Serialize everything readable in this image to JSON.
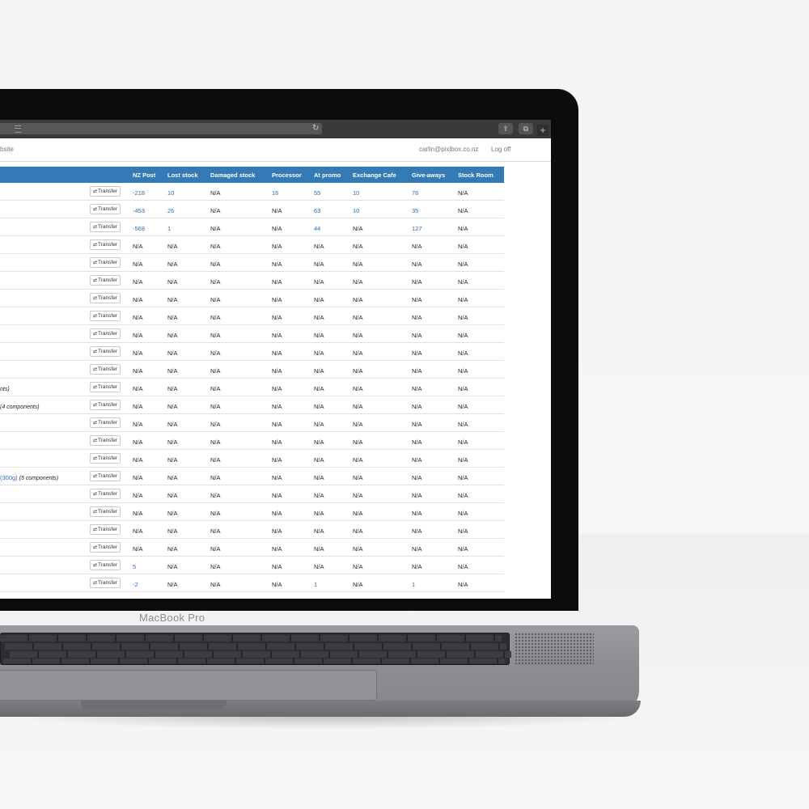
{
  "browser": {
    "reload_icon": "↻",
    "share_icon": "⇪",
    "tabs_icon": "⧉",
    "new_tab_label": "+"
  },
  "header": {
    "site_link": "bsite",
    "user_email": "carlin@pixlbox.co.nz",
    "logoff_label": "Log off"
  },
  "table": {
    "columns": [
      "NZ Post",
      "Lost stock",
      "Damaged stock",
      "Processor",
      "At promo",
      "Exchange Cafe",
      "Give-aways",
      "Stock Room"
    ],
    "transfer_label": "Transfer",
    "rows": [
      {
        "product": "",
        "product_link": "",
        "components": "",
        "values": [
          "-218",
          "10",
          "N/A",
          "16",
          "55",
          "10",
          "76",
          "N/A"
        ]
      },
      {
        "product": "",
        "product_link": "",
        "components": "",
        "values": [
          "-453",
          "26",
          "N/A",
          "N/A",
          "63",
          "10",
          "35",
          "N/A"
        ]
      },
      {
        "product": "",
        "product_link": "",
        "components": "",
        "values": [
          "-568",
          "1",
          "N/A",
          "N/A",
          "44",
          "N/A",
          "127",
          "N/A"
        ]
      },
      {
        "product": "",
        "product_link": "",
        "components": "",
        "values": [
          "N/A",
          "N/A",
          "N/A",
          "N/A",
          "N/A",
          "N/A",
          "N/A",
          "N/A"
        ]
      },
      {
        "product": "",
        "product_link": "",
        "components": "",
        "values": [
          "N/A",
          "N/A",
          "N/A",
          "N/A",
          "N/A",
          "N/A",
          "N/A",
          "N/A"
        ]
      },
      {
        "product": "",
        "product_link": "",
        "components": "",
        "values": [
          "N/A",
          "N/A",
          "N/A",
          "N/A",
          "N/A",
          "N/A",
          "N/A",
          "N/A"
        ]
      },
      {
        "product": "",
        "product_link": "",
        "components": "",
        "values": [
          "N/A",
          "N/A",
          "N/A",
          "N/A",
          "N/A",
          "N/A",
          "N/A",
          "N/A"
        ]
      },
      {
        "product": "",
        "product_link": "",
        "components": "",
        "values": [
          "N/A",
          "N/A",
          "N/A",
          "N/A",
          "N/A",
          "N/A",
          "N/A",
          "N/A"
        ]
      },
      {
        "product": "",
        "product_link": "",
        "components": "",
        "values": [
          "N/A",
          "N/A",
          "N/A",
          "N/A",
          "N/A",
          "N/A",
          "N/A",
          "N/A"
        ]
      },
      {
        "product": "",
        "product_link": "",
        "components": "",
        "values": [
          "N/A",
          "N/A",
          "N/A",
          "N/A",
          "N/A",
          "N/A",
          "N/A",
          "N/A"
        ]
      },
      {
        "product": "",
        "product_link": "",
        "components": "",
        "values": [
          "N/A",
          "N/A",
          "N/A",
          "N/A",
          "N/A",
          "N/A",
          "N/A",
          "N/A"
        ]
      },
      {
        "product": "nts)",
        "product_link": "",
        "components": "",
        "values": [
          "N/A",
          "N/A",
          "N/A",
          "N/A",
          "N/A",
          "N/A",
          "N/A",
          "N/A"
        ]
      },
      {
        "product": "(4 components)",
        "product_link": "",
        "components": "",
        "values": [
          "N/A",
          "N/A",
          "N/A",
          "N/A",
          "N/A",
          "N/A",
          "N/A",
          "N/A"
        ]
      },
      {
        "product": "",
        "product_link": "",
        "components": "",
        "values": [
          "N/A",
          "N/A",
          "N/A",
          "N/A",
          "N/A",
          "N/A",
          "N/A",
          "N/A"
        ]
      },
      {
        "product": "",
        "product_link": "",
        "components": "",
        "values": [
          "N/A",
          "N/A",
          "N/A",
          "N/A",
          "N/A",
          "N/A",
          "N/A",
          "N/A"
        ]
      },
      {
        "product": "",
        "product_link": "",
        "components": "",
        "values": [
          "N/A",
          "N/A",
          "N/A",
          "N/A",
          "N/A",
          "N/A",
          "N/A",
          "N/A"
        ]
      },
      {
        "product": "",
        "product_link": "(300g)",
        "components": " (5 components)",
        "values": [
          "N/A",
          "N/A",
          "N/A",
          "N/A",
          "N/A",
          "N/A",
          "N/A",
          "N/A"
        ]
      },
      {
        "product": "",
        "product_link": "",
        "components": "",
        "values": [
          "N/A",
          "N/A",
          "N/A",
          "N/A",
          "N/A",
          "N/A",
          "N/A",
          "N/A"
        ]
      },
      {
        "product": "",
        "product_link": "",
        "components": "",
        "values": [
          "N/A",
          "N/A",
          "N/A",
          "N/A",
          "N/A",
          "N/A",
          "N/A",
          "N/A"
        ]
      },
      {
        "product": "",
        "product_link": "",
        "components": "",
        "values": [
          "N/A",
          "N/A",
          "N/A",
          "N/A",
          "N/A",
          "N/A",
          "N/A",
          "N/A"
        ]
      },
      {
        "product": "",
        "product_link": "",
        "components": "",
        "values": [
          "N/A",
          "N/A",
          "N/A",
          "N/A",
          "N/A",
          "N/A",
          "N/A",
          "N/A"
        ]
      },
      {
        "product": "",
        "product_link": "",
        "components": "",
        "values": [
          "5",
          "N/A",
          "N/A",
          "N/A",
          "N/A",
          "N/A",
          "N/A",
          "N/A"
        ]
      },
      {
        "product": "",
        "product_link": "",
        "components": "",
        "values": [
          "-2",
          "N/A",
          "N/A",
          "N/A",
          "1",
          "N/A",
          "1",
          "N/A"
        ]
      }
    ]
  },
  "device": {
    "brand_label": "MacBook Pro"
  },
  "colors": {
    "header_blue": "#337ab7",
    "link_blue": "#2a6eb5"
  }
}
